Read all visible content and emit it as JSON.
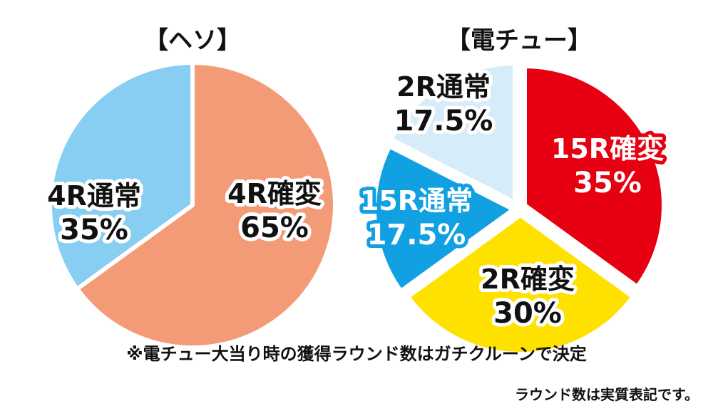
{
  "chart_data": [
    {
      "type": "pie",
      "title": "【ヘソ】",
      "slices": [
        {
          "line1": "4R確変",
          "line2": "65%",
          "value": 65,
          "color": "#F29B76",
          "text_color": "#111111",
          "outline": "#ffffff"
        },
        {
          "line1": "4R通常",
          "line2": "35%",
          "value": 35,
          "color": "#88CDF2",
          "text_color": "#111111",
          "outline": "#ffffff"
        }
      ]
    },
    {
      "type": "pie",
      "title": "【電チュー】",
      "slices": [
        {
          "line1": "15R確変",
          "line2": "35%",
          "value": 35,
          "color": "#E60012",
          "text_color": "#ffffff",
          "outline": "#E60012"
        },
        {
          "line1": "2R確変",
          "line2": "30%",
          "value": 30,
          "color": "#FFE100",
          "text_color": "#111111",
          "outline": "#ffffff"
        },
        {
          "line1": "15R通常",
          "line2": "17.5%",
          "value": 17.5,
          "color": "#11A0E2",
          "text_color": "#ffffff",
          "outline": "#11A0E2"
        },
        {
          "line1": "2R通常",
          "line2": "17.5%",
          "value": 17.5,
          "color": "#D6ECF9",
          "text_color": "#111111",
          "outline": "#ffffff"
        }
      ]
    }
  ],
  "notes": {
    "main": "※電チュー大当り時の獲得ラウンド数はガチクルーンで決定",
    "sub": "ラウンド数は実質表記です。"
  }
}
